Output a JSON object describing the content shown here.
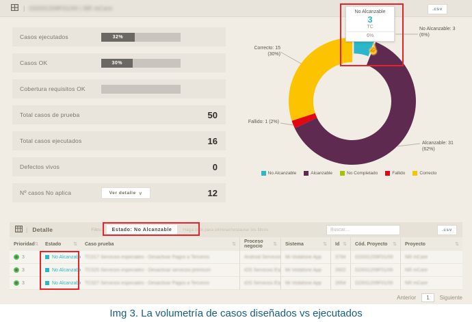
{
  "header": {
    "title_redacted": "GD031209F01/00 | NR mCare",
    "csv_label": ".csv"
  },
  "colors": {
    "no_alcanzable": "#2bb6c9",
    "alcanzable": "#5e2a50",
    "no_completado": "#a4c400",
    "fallido": "#e30613",
    "correcto": "#fcc400",
    "highlight_red": "#e8212b",
    "caption_blue": "#155e80"
  },
  "metrics": {
    "rows": [
      {
        "label": "Casos ejecutados",
        "pct": "32%"
      },
      {
        "label": "Casos OK",
        "pct": "30%"
      },
      {
        "label": "Cobertura requisitos OK",
        "pct": ""
      },
      {
        "label": "Total casos de prueba",
        "value": "50"
      },
      {
        "label": "Total casos ejecutados",
        "value": "16"
      },
      {
        "label": "Defectos vivos",
        "value": "0"
      },
      {
        "label": "Nº casos No aplica",
        "value": "12",
        "button_label": "Ver detalle"
      }
    ]
  },
  "chart_data": {
    "type": "pie",
    "subtype": "donut",
    "title": "",
    "legend_position": "bottom",
    "series": [
      {
        "name": "No Alcanzable",
        "value": 3,
        "pct": 6,
        "color": "#2bb6c9",
        "exploded": true
      },
      {
        "name": "Alcanzable",
        "value": 31,
        "pct": 62,
        "color": "#5e2a50",
        "exploded": false
      },
      {
        "name": "Fallido",
        "value": 1,
        "pct": 2,
        "color": "#e30613",
        "exploded": false
      },
      {
        "name": "Correcto",
        "value": 15,
        "pct": 30,
        "color": "#fcc400",
        "exploded": false
      }
    ],
    "callouts": [
      {
        "line1": "No Alcanzable: 3",
        "line2": "(6%)"
      },
      {
        "line1": "Alcanzable: 31",
        "line2": "(62%)"
      },
      {
        "line1": "Fallido: 1 (2%)",
        "line2": ""
      },
      {
        "line1": "Correcto: 15",
        "line2": "(30%)"
      }
    ],
    "legend": [
      {
        "label": "No Alcanzable",
        "color": "#2bb6c9"
      },
      {
        "label": "Alcanzable",
        "color": "#5e2a50"
      },
      {
        "label": "No Completado",
        "color": "#a4c400"
      },
      {
        "label": "Fallido",
        "color": "#e30613"
      },
      {
        "label": "Correcto",
        "color": "#fcc400"
      }
    ]
  },
  "tooltip": {
    "title": "No Alcanzable",
    "value": "3",
    "unit": "TC",
    "pct": "6%"
  },
  "table": {
    "title": "Detalle",
    "filter_label": "Filtro:",
    "filter_chip": "Estado: No Alcanzable",
    "filter_hint": "Haga click para eliminar/restaurar los filtros",
    "search_placeholder": "Buscar...",
    "csv_label": ".csv",
    "columns": [
      "Prioridad",
      "Estado",
      "Caso prueba",
      "Proceso negocio",
      "Sistema",
      "Id",
      "Cód. Proyecto",
      "Proyecto"
    ],
    "rows": [
      {
        "prioridad": "3",
        "estado": "No Alcanzable",
        "caso_redacted": "TC017 Servicios especiales - Desactivar Pagos a Terceros",
        "proceso_redacted": "Android Servicios E...",
        "sistema_redacted": "Mi Vodafone App",
        "id_redacted": "3794",
        "cod_redacted": "GD031209F01/00",
        "proyecto_redacted": "NR mCare"
      },
      {
        "prioridad": "3",
        "estado": "No Alcanzable",
        "caso_redacted": "TC025 Servicios especiales - Desactivar servicios premium",
        "proceso_redacted": "iOS Servicios Espe...",
        "sistema_redacted": "Mi Vodafone App",
        "id_redacted": "2602",
        "cod_redacted": "GD031209F01/00",
        "proyecto_redacted": "NR mCare"
      },
      {
        "prioridad": "3",
        "estado": "No Alcanzable",
        "caso_redacted": "TC027 Servicios especiales - Desactivar Pagos a Terceros",
        "proceso_redacted": "iOS Servicios Espe...",
        "sistema_redacted": "Mi Vodafone App",
        "id_redacted": "2654",
        "cod_redacted": "GD031209F01/00",
        "proyecto_redacted": "NR mCare"
      }
    ]
  },
  "pagination": {
    "prev": "Anterior",
    "page": "1",
    "next": "Siguiente"
  },
  "caption": "Img 3. La volumetría de casos diseñados vs ejecutados"
}
